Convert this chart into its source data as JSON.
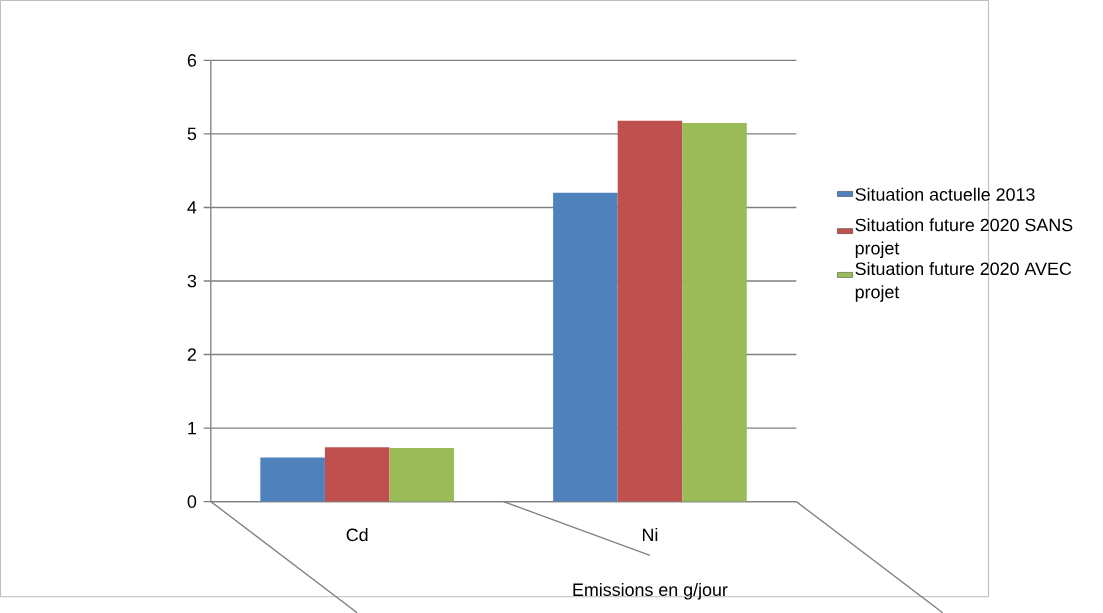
{
  "chart_data": {
    "type": "bar",
    "xlabel": "Emissions en g/jour",
    "categories": [
      "Cd",
      "Ni"
    ],
    "series": [
      {
        "name": "Situation actuelle 2013",
        "color": "#4f81bd",
        "values": [
          0.6,
          4.2
        ]
      },
      {
        "name": "Situation future 2020 SANS projet",
        "color": "#c0504d",
        "values": [
          0.74,
          5.18
        ]
      },
      {
        "name": "Situation future 2020 AVEC projet",
        "color": "#9bbb59",
        "values": [
          0.73,
          5.15
        ]
      }
    ],
    "ylim": [
      0,
      6
    ],
    "yticks": [
      0,
      1,
      2,
      3,
      4,
      5,
      6
    ],
    "grid": "y",
    "legend": "right"
  }
}
